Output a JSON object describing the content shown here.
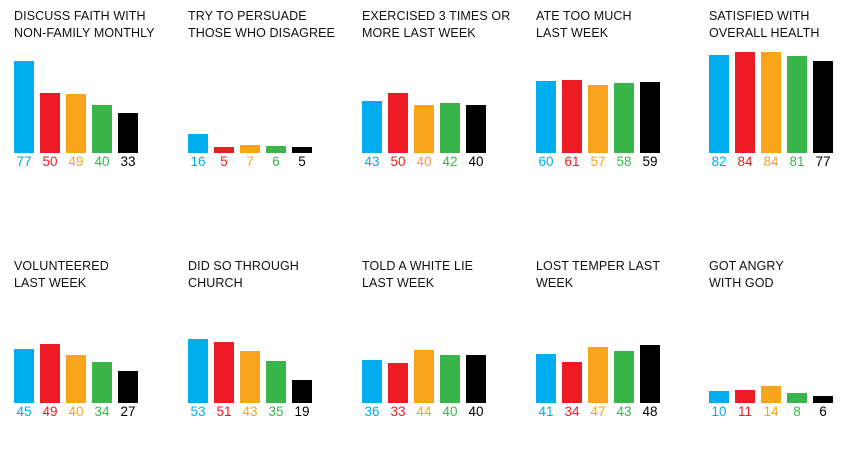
{
  "colors": [
    "#00aeef",
    "#ed1c24",
    "#f8a51c",
    "#39b54a",
    "#000000"
  ],
  "chart_data": [
    {
      "type": "bar",
      "title": [
        "DISCUSS FAITH WITH",
        "NON-FAMILY MONTHLY"
      ],
      "values": [
        77,
        50,
        49,
        40,
        33
      ],
      "ylim": [
        0,
        100
      ]
    },
    {
      "type": "bar",
      "title": [
        "TRY TO PERSUADE",
        "THOSE WHO DISAGREE"
      ],
      "values": [
        16,
        5,
        7,
        6,
        5
      ],
      "ylim": [
        0,
        100
      ]
    },
    {
      "type": "bar",
      "title": [
        "EXERCISED 3 TIMES OR",
        "MORE LAST WEEK"
      ],
      "values": [
        43,
        50,
        40,
        42,
        40
      ],
      "ylim": [
        0,
        100
      ]
    },
    {
      "type": "bar",
      "title": [
        "ATE TOO MUCH",
        "LAST WEEK"
      ],
      "values": [
        60,
        61,
        57,
        58,
        59
      ],
      "ylim": [
        0,
        100
      ]
    },
    {
      "type": "bar",
      "title": [
        "SATISFIED WITH",
        "OVERALL HEALTH"
      ],
      "values": [
        82,
        84,
        84,
        81,
        77
      ],
      "ylim": [
        0,
        100
      ]
    },
    {
      "type": "bar",
      "title": [
        "VOLUNTEERED",
        "LAST WEEK"
      ],
      "values": [
        45,
        49,
        40,
        34,
        27
      ],
      "ylim": [
        0,
        100
      ]
    },
    {
      "type": "bar",
      "title": [
        "DID SO THROUGH",
        "CHURCH"
      ],
      "values": [
        53,
        51,
        43,
        35,
        19
      ],
      "ylim": [
        0,
        100
      ]
    },
    {
      "type": "bar",
      "title": [
        "TOLD A WHITE LIE",
        "LAST WEEK"
      ],
      "values": [
        36,
        33,
        44,
        40,
        40
      ],
      "ylim": [
        0,
        100
      ]
    },
    {
      "type": "bar",
      "title": [
        "LOST TEMPER LAST",
        "WEEK"
      ],
      "values": [
        41,
        34,
        47,
        43,
        48
      ],
      "ylim": [
        0,
        100
      ]
    },
    {
      "type": "bar",
      "title": [
        "GOT ANGRY",
        "WITH GOD"
      ],
      "values": [
        10,
        11,
        14,
        8,
        6
      ],
      "ylim": [
        0,
        100
      ]
    }
  ]
}
